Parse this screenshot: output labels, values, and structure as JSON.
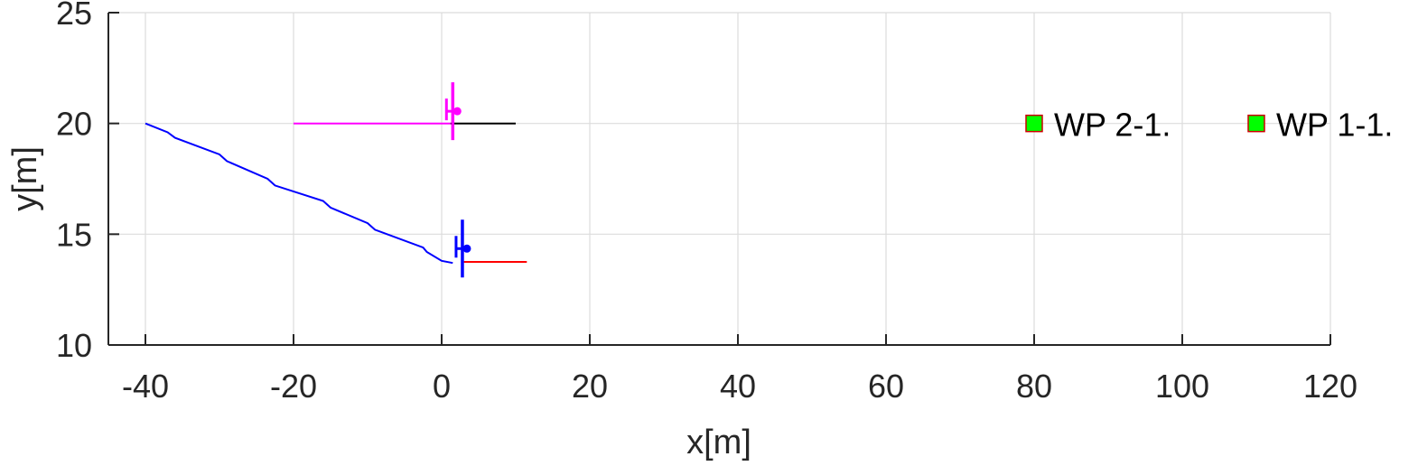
{
  "chart_data": {
    "type": "line",
    "xlabel": "x[m]",
    "ylabel": "y[m]",
    "xlim": [
      -45,
      120
    ],
    "ylim": [
      10,
      25
    ],
    "xticks": [
      "-40",
      "-20",
      "0",
      "20",
      "40",
      "60",
      "80",
      "100",
      "120"
    ],
    "yticks": [
      "10",
      "15",
      "20",
      "25"
    ],
    "grid": true,
    "colors": {
      "axis": "#262626",
      "grid": "#dcdcdc",
      "vehicle_1": "#ff00ff",
      "vehicle_2": "#0000ff",
      "ref_1": "#000000",
      "ref_2": "#ff0000",
      "waypoint_fill": "#00ff00",
      "waypoint_edge": "#cc0000"
    },
    "series": [
      {
        "color": "#0000ff",
        "x": [
          -40,
          -37,
          -36,
          -30,
          -29,
          -23.5,
          -22.5,
          -16,
          -15,
          -10,
          -9,
          -2.5,
          -2,
          0,
          1.5
        ],
        "y": [
          20,
          19.6,
          19.35,
          18.6,
          18.3,
          17.5,
          17.2,
          16.5,
          16.2,
          15.5,
          15.2,
          14.4,
          14.2,
          13.8,
          13.7
        ]
      },
      {
        "color": "#ff00ff",
        "x": [
          -20,
          1.2
        ],
        "y": [
          20,
          20
        ]
      },
      {
        "color": "#000000",
        "x": [
          1.2,
          10
        ],
        "y": [
          20,
          20
        ]
      },
      {
        "color": "#ff0000",
        "x": [
          3,
          11.5
        ],
        "y": [
          13.75,
          13.75
        ]
      }
    ],
    "vehicles": [
      {
        "color": "#ff00ff",
        "x": 1.5,
        "y": 20.55
      },
      {
        "color": "#0000ff",
        "x": 2.8,
        "y": 14.35
      }
    ],
    "waypoints": [
      {
        "label": "WP 2-1.",
        "x": 80,
        "y": 20
      },
      {
        "label": "WP 1-1.",
        "x": 110,
        "y": 20
      }
    ]
  }
}
